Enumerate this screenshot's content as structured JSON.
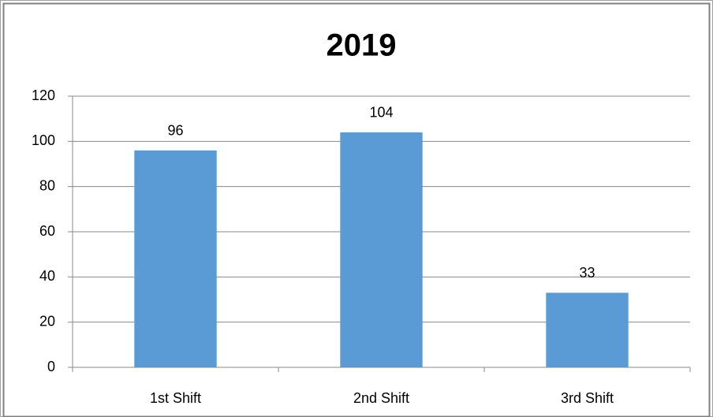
{
  "chart_data": {
    "type": "bar",
    "title": "2019",
    "categories": [
      "1st Shift",
      "2nd Shift",
      "3rd Shift"
    ],
    "values": [
      96,
      104,
      33
    ],
    "color": "#5b9bd5",
    "ylim": [
      0,
      120
    ],
    "yticks": [
      0,
      20,
      40,
      60,
      80,
      100,
      120
    ],
    "grid": true
  }
}
